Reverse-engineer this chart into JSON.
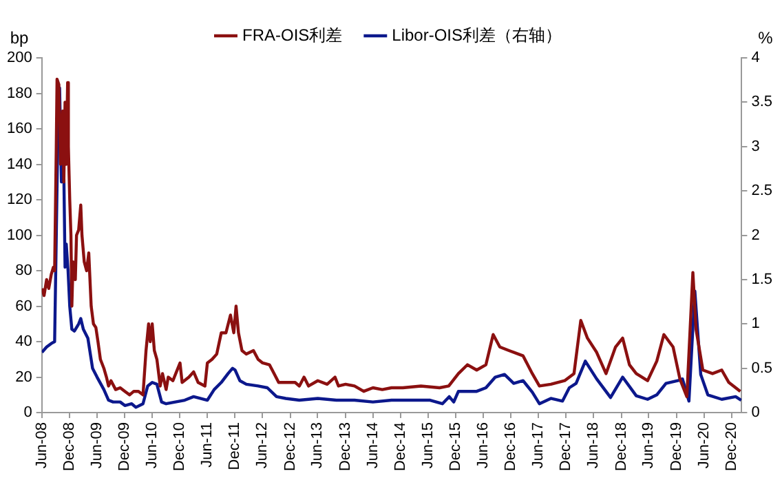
{
  "chart_data": {
    "type": "line",
    "ylabel": "bp",
    "y2label": "%",
    "legend": "top",
    "grid": false,
    "marker": "none",
    "line_style": "solid",
    "xlim": [
      "2008-06-30",
      "2021-03-07"
    ],
    "xticks": [
      {
        "value": "2008-06-30",
        "label": "Jun-08"
      },
      {
        "value": "2008-12-31",
        "label": "Dec-08"
      },
      {
        "value": "2009-06-30",
        "label": "Jun-09"
      },
      {
        "value": "2009-12-31",
        "label": "Dec-09"
      },
      {
        "value": "2010-06-30",
        "label": "Jun-10"
      },
      {
        "value": "2010-12-31",
        "label": "Dec-10"
      },
      {
        "value": "2011-06-30",
        "label": "Jun-11"
      },
      {
        "value": "2011-12-31",
        "label": "Dec-11"
      },
      {
        "value": "2012-06-30",
        "label": "Jun-12"
      },
      {
        "value": "2012-12-31",
        "label": "Dec-12"
      },
      {
        "value": "2013-06-30",
        "label": "Jun-13"
      },
      {
        "value": "2013-12-31",
        "label": "Dec-13"
      },
      {
        "value": "2014-06-30",
        "label": "Jun-14"
      },
      {
        "value": "2014-12-31",
        "label": "Dec-14"
      },
      {
        "value": "2015-06-30",
        "label": "Jun-15"
      },
      {
        "value": "2015-12-31",
        "label": "Dec-15"
      },
      {
        "value": "2016-06-30",
        "label": "Jun-16"
      },
      {
        "value": "2016-12-31",
        "label": "Dec-16"
      },
      {
        "value": "2017-06-30",
        "label": "Jun-17"
      },
      {
        "value": "2017-12-31",
        "label": "Dec-17"
      },
      {
        "value": "2018-06-30",
        "label": "Jun-18"
      },
      {
        "value": "2018-12-31",
        "label": "Dec-18"
      },
      {
        "value": "2019-06-30",
        "label": "Jun-19"
      },
      {
        "value": "2019-12-31",
        "label": "Dec-19"
      },
      {
        "value": "2020-06-30",
        "label": "Jun-20"
      },
      {
        "value": "2020-12-31",
        "label": "Dec-20"
      }
    ],
    "ylim": [
      0,
      200
    ],
    "yticks": [
      0,
      20,
      40,
      60,
      80,
      100,
      120,
      140,
      160,
      180,
      200
    ],
    "y2lim": [
      0,
      4
    ],
    "y2ticks": [
      0,
      0.5,
      1,
      1.5,
      2,
      2.5,
      3,
      3.5,
      4
    ],
    "series": [
      {
        "name": "FRA-OIS利差",
        "color": "#8b1010",
        "x": [
          "2008-07-01",
          "2008-07-15",
          "2008-08-01",
          "2008-08-15",
          "2008-09-01",
          "2008-09-15",
          "2008-09-23",
          "2008-10-04",
          "2008-10-09",
          "2008-10-21",
          "2008-11-01",
          "2008-11-15",
          "2008-11-23",
          "2008-12-01",
          "2008-12-09",
          "2008-12-18",
          "2008-12-23",
          "2009-01-01",
          "2009-01-09",
          "2009-01-15",
          "2009-01-23",
          "2009-02-07",
          "2009-02-15",
          "2009-03-01",
          "2009-03-15",
          "2009-03-23",
          "2009-04-07",
          "2009-04-23",
          "2009-05-07",
          "2009-05-23",
          "2009-06-07",
          "2009-06-23",
          "2009-07-07",
          "2009-07-23",
          "2009-08-15",
          "2009-09-01",
          "2009-09-15",
          "2009-10-01",
          "2009-11-01",
          "2009-12-01",
          "2010-01-01",
          "2010-02-01",
          "2010-03-01",
          "2010-04-01",
          "2010-05-01",
          "2010-05-21",
          "2010-06-07",
          "2010-06-18",
          "2010-07-01",
          "2010-07-15",
          "2010-08-01",
          "2010-08-23",
          "2010-09-07",
          "2010-10-01",
          "2010-10-15",
          "2010-11-15",
          "2011-01-01",
          "2011-01-15",
          "2011-03-01",
          "2011-04-01",
          "2011-05-01",
          "2011-06-15",
          "2011-07-01",
          "2011-08-01",
          "2011-09-01",
          "2011-10-01",
          "2011-11-01",
          "2011-12-01",
          "2011-12-23",
          "2012-01-07",
          "2012-01-23",
          "2012-02-15",
          "2012-03-15",
          "2012-05-01",
          "2012-06-01",
          "2012-07-01",
          "2012-08-15",
          "2012-09-15",
          "2012-10-15",
          "2012-12-01",
          "2013-02-01",
          "2013-03-01",
          "2013-04-01",
          "2013-05-01",
          "2013-07-01",
          "2013-09-01",
          "2013-10-23",
          "2013-11-15",
          "2014-01-01",
          "2014-03-01",
          "2014-05-01",
          "2014-07-01",
          "2014-09-01",
          "2014-11-01",
          "2015-01-15",
          "2015-05-15",
          "2015-09-15",
          "2015-11-15",
          "2016-01-18",
          "2016-03-18",
          "2016-05-18",
          "2016-07-18",
          "2016-09-04",
          "2016-10-18",
          "2016-12-18",
          "2017-03-21",
          "2017-05-21",
          "2017-07-07",
          "2017-09-21",
          "2017-12-21",
          "2018-02-21",
          "2018-04-07",
          "2018-05-21",
          "2018-07-21",
          "2018-09-21",
          "2018-11-23",
          "2019-01-09",
          "2019-02-23",
          "2019-04-09",
          "2019-06-23",
          "2019-08-23",
          "2019-10-09",
          "2019-12-09",
          "2020-01-23",
          "2020-03-09",
          "2020-04-18",
          "2020-05-09",
          "2020-06-23",
          "2020-08-26",
          "2020-10-26",
          "2020-12-12",
          "2021-02-26"
        ],
        "values": [
          70,
          66,
          75,
          70,
          78,
          82,
          80,
          150,
          188,
          185,
          140,
          170,
          130,
          175,
          140,
          186,
          150,
          120,
          100,
          60,
          85,
          75,
          100,
          103,
          117,
          100,
          85,
          80,
          90,
          60,
          50,
          48,
          40,
          30,
          25,
          20,
          15,
          18,
          13,
          14,
          12,
          10,
          12,
          12,
          10,
          35,
          50,
          40,
          50,
          35,
          30,
          15,
          22,
          13,
          20,
          18,
          28,
          17,
          20,
          23,
          17,
          15,
          28,
          30,
          33,
          45,
          45,
          55,
          45,
          60,
          45,
          35,
          33,
          35,
          30,
          28,
          27,
          22,
          17,
          17,
          17,
          15,
          20,
          15,
          18,
          16,
          20,
          15,
          16,
          15,
          12,
          14,
          13,
          14,
          14,
          15,
          14,
          15,
          22,
          27,
          24,
          27,
          44,
          37,
          35,
          32,
          22,
          15,
          16,
          18,
          22,
          52,
          42,
          34,
          22,
          37,
          42,
          27,
          22,
          18,
          29,
          44,
          37,
          19,
          9,
          79,
          47,
          24,
          22,
          24,
          17,
          12
        ]
      },
      {
        "name": "Libor-OIS利差（右轴）",
        "color": "#0c188c",
        "axis": "y2",
        "x": [
          "2008-07-01",
          "2008-08-01",
          "2008-09-01",
          "2008-09-23",
          "2008-10-04",
          "2008-10-15",
          "2008-10-26",
          "2008-11-07",
          "2008-11-18",
          "2008-12-01",
          "2008-12-09",
          "2008-12-21",
          "2009-01-01",
          "2009-01-15",
          "2009-02-01",
          "2009-03-01",
          "2009-03-15",
          "2009-04-01",
          "2009-05-01",
          "2009-06-01",
          "2009-07-01",
          "2009-08-15",
          "2009-09-15",
          "2009-10-15",
          "2009-12-01",
          "2010-01-01",
          "2010-02-15",
          "2010-03-15",
          "2010-05-01",
          "2010-06-01",
          "2010-07-01",
          "2010-08-01",
          "2010-09-01",
          "2010-10-01",
          "2010-12-01",
          "2011-02-01",
          "2011-04-01",
          "2011-05-15",
          "2011-07-01",
          "2011-08-15",
          "2011-10-01",
          "2011-11-15",
          "2011-12-15",
          "2012-01-01",
          "2012-02-01",
          "2012-03-15",
          "2012-06-01",
          "2012-08-01",
          "2012-10-01",
          "2012-12-01",
          "2013-03-01",
          "2013-07-01",
          "2013-11-01",
          "2014-03-01",
          "2014-07-01",
          "2014-11-01",
          "2015-01-15",
          "2015-07-15",
          "2015-10-04",
          "2015-11-18",
          "2015-12-18",
          "2016-01-18",
          "2016-05-18",
          "2016-07-18",
          "2016-09-18",
          "2016-11-18",
          "2017-01-18",
          "2017-03-21",
          "2017-05-21",
          "2017-07-07",
          "2017-09-21",
          "2017-12-07",
          "2018-01-21",
          "2018-03-07",
          "2018-05-07",
          "2018-07-21",
          "2018-10-21",
          "2019-01-09",
          "2019-04-09",
          "2019-06-23",
          "2019-08-23",
          "2019-10-23",
          "2020-01-09",
          "2020-02-09",
          "2020-03-23",
          "2020-05-01",
          "2020-06-09",
          "2020-07-26",
          "2020-10-26",
          "2021-01-26",
          "2021-03-04"
        ],
        "values": [
          0.68,
          0.74,
          0.78,
          0.8,
          2.0,
          3.2,
          3.66,
          2.6,
          3.36,
          1.64,
          1.9,
          1.6,
          1.2,
          0.94,
          0.92,
          1.0,
          1.06,
          0.94,
          0.84,
          0.5,
          0.4,
          0.26,
          0.14,
          0.12,
          0.12,
          0.08,
          0.1,
          0.06,
          0.1,
          0.3,
          0.34,
          0.32,
          0.12,
          0.1,
          0.12,
          0.14,
          0.18,
          0.16,
          0.14,
          0.26,
          0.34,
          0.44,
          0.5,
          0.48,
          0.36,
          0.32,
          0.3,
          0.28,
          0.18,
          0.16,
          0.14,
          0.16,
          0.14,
          0.14,
          0.12,
          0.14,
          0.14,
          0.14,
          0.1,
          0.18,
          0.12,
          0.24,
          0.24,
          0.28,
          0.4,
          0.43,
          0.33,
          0.36,
          0.23,
          0.1,
          0.16,
          0.13,
          0.28,
          0.33,
          0.58,
          0.38,
          0.17,
          0.4,
          0.19,
          0.15,
          0.2,
          0.33,
          0.36,
          0.38,
          0.13,
          1.37,
          0.43,
          0.2,
          0.15,
          0.18,
          0.14
        ]
      }
    ]
  }
}
